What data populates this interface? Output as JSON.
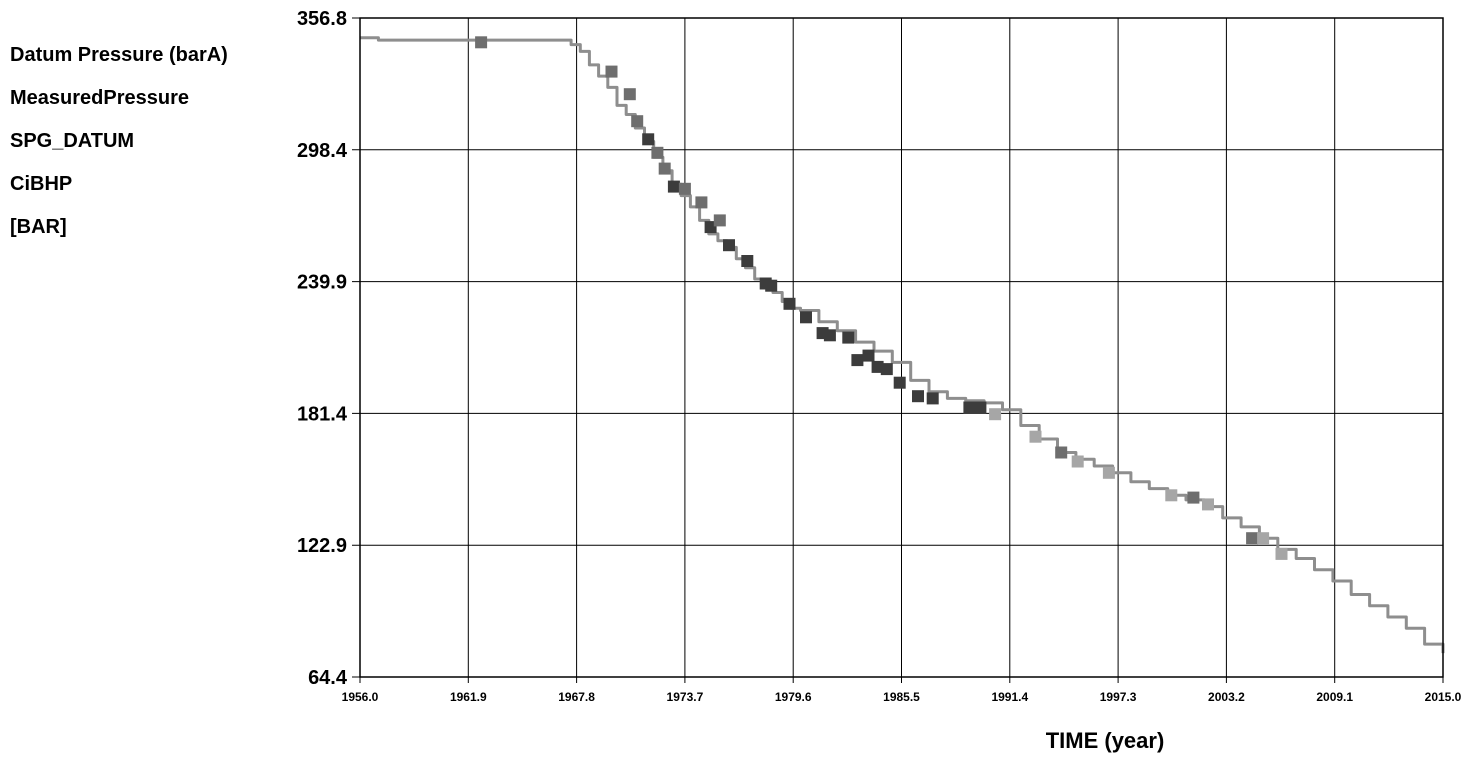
{
  "chart_data": {
    "type": "scatter",
    "title": "",
    "ylabel_lines": [
      "Datum Pressure (barA)",
      "MeasuredPressure",
      "SPG_DATUM",
      "CiBHP",
      "[BAR]"
    ],
    "xlabel": "TIME (year)",
    "xlim": [
      1956.0,
      2015.0
    ],
    "ylim": [
      64.4,
      356.8
    ],
    "x_ticks": [
      "1956.0",
      "1961.9",
      "1967.8",
      "1973.7",
      "1979.6",
      "1985.5",
      "1991.4",
      "1997.3",
      "2003.2",
      "2009.1",
      "2015.0"
    ],
    "y_ticks": [
      "356.8",
      "298.4",
      "239.9",
      "181.4",
      "122.9",
      "64.4"
    ],
    "grid": true,
    "colors": {
      "line": "#8e8e8e",
      "marker_dark": "#3c3c3c",
      "marker_mid": "#6e6e6e",
      "marker_light": "#a6a6a6"
    },
    "series": [
      {
        "type": "line",
        "x": [
          1956.0,
          1957.0,
          1958.0,
          1960.0,
          1963.0,
          1966.0,
          1967.5,
          1968.0,
          1968.5,
          1969.0,
          1969.5,
          1970.0,
          1970.5,
          1971.0,
          1971.5,
          1972.0,
          1972.5,
          1973.0,
          1973.5,
          1974.0,
          1974.5,
          1975.0,
          1975.5,
          1976.0,
          1976.5,
          1977.0,
          1977.5,
          1978.0,
          1978.5,
          1979.0,
          1979.5,
          1980.0,
          1981.0,
          1982.0,
          1983.0,
          1984.0,
          1985.0,
          1986.0,
          1987.0,
          1988.0,
          1989.0,
          1990.0,
          1991.0,
          1992.0,
          1993.0,
          1994.0,
          1995.0,
          1996.0,
          1997.0,
          1998.0,
          1999.0,
          2000.0,
          2001.0,
          2002.0,
          2003.0,
          2004.0,
          2005.0,
          2006.0,
          2007.0,
          2008.0,
          2009.0,
          2010.0,
          2011.0,
          2012.0,
          2013.0,
          2014.0,
          2015.0
        ],
        "y": [
          348,
          347,
          347,
          347,
          347,
          347,
          345,
          342,
          336,
          331,
          326,
          318,
          314,
          308,
          302,
          295,
          289,
          283,
          278,
          273,
          267,
          261,
          258,
          255,
          250,
          246,
          241,
          238,
          235,
          231,
          228,
          227,
          222,
          218,
          213,
          209,
          204,
          196,
          191,
          188,
          187,
          186,
          183,
          176,
          170,
          164,
          161,
          158,
          155,
          151,
          148,
          145,
          143,
          140,
          135,
          131,
          126,
          121,
          117,
          112,
          107,
          101,
          96,
          91,
          86,
          79,
          75
        ]
      },
      {
        "type": "scatter",
        "name": "",
        "x": [
          1962.6,
          1969.7,
          1970.7,
          1971.1,
          1971.7,
          1972.2,
          1972.6,
          1973.1,
          1973.7,
          1974.6,
          1975.1,
          1975.6,
          1976.1,
          1977.1,
          1978.1,
          1978.4,
          1979.4,
          1980.3,
          1981.2,
          1981.6,
          1982.6,
          1983.1,
          1983.7,
          1984.2,
          1984.7,
          1985.4,
          1986.4,
          1987.2,
          1989.2,
          1989.8,
          1990.6,
          1992.8,
          1994.2,
          1995.1,
          1996.8,
          2000.2,
          2001.4,
          2002.2,
          2004.6,
          2005.2,
          2006.2
        ],
        "y": [
          346,
          333,
          323,
          311,
          303,
          297,
          290,
          282,
          281,
          275,
          264,
          267,
          256,
          249,
          239,
          238,
          230,
          224,
          217,
          216,
          215,
          205,
          207,
          202,
          201,
          195,
          189,
          188,
          184,
          184,
          181,
          171,
          164,
          160,
          155,
          145,
          144,
          141,
          126,
          126,
          119
        ],
        "shades": [
          "mid",
          "mid",
          "mid",
          "mid",
          "dark",
          "mid",
          "mid",
          "dark",
          "mid",
          "mid",
          "dark",
          "mid",
          "dark",
          "dark",
          "dark",
          "dark",
          "dark",
          "dark",
          "dark",
          "dark",
          "dark",
          "dark",
          "dark",
          "dark",
          "dark",
          "dark",
          "dark",
          "dark",
          "dark",
          "dark",
          "light",
          "light",
          "mid",
          "light",
          "light",
          "light",
          "mid",
          "light",
          "mid",
          "light",
          "light"
        ]
      }
    ]
  }
}
